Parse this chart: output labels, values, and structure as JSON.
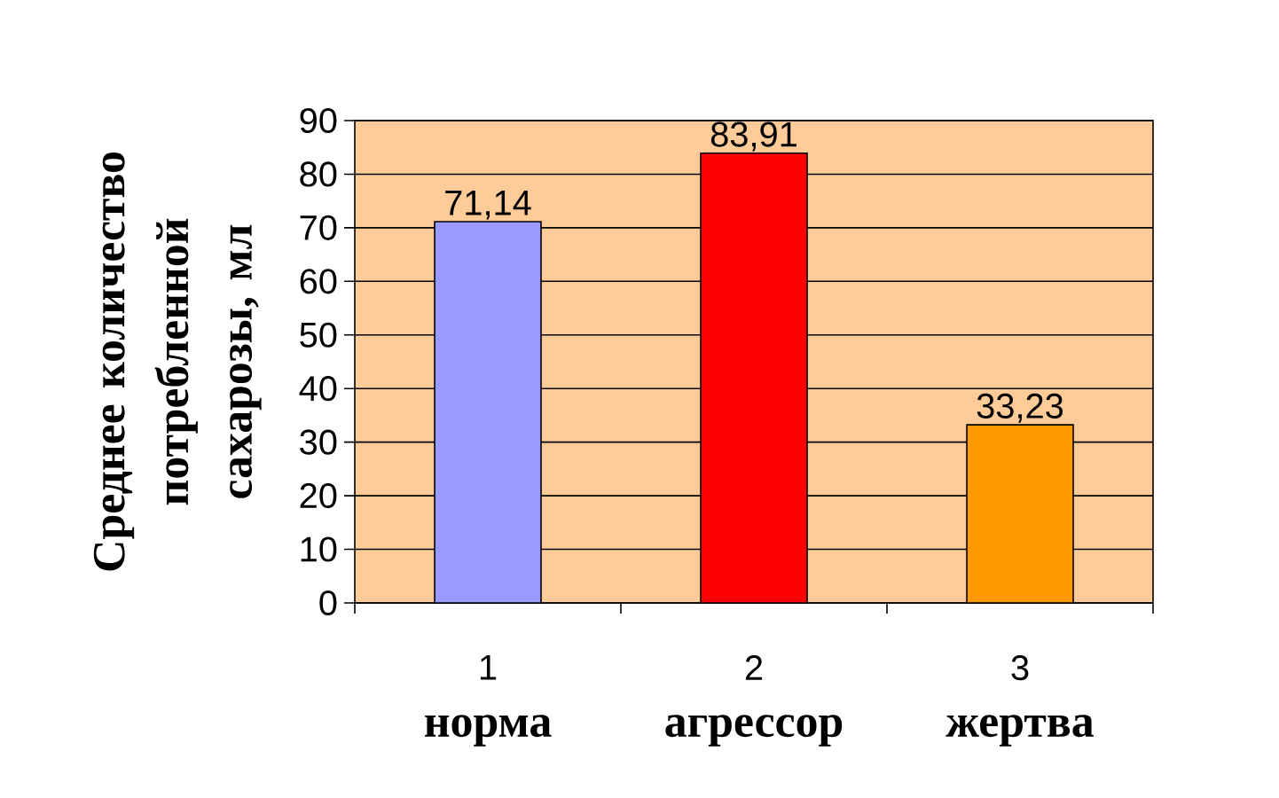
{
  "chart_data": {
    "type": "bar",
    "ylabel": "Среднее количество потребленной сахарозы, мл",
    "categories": [
      "1",
      "2",
      "3"
    ],
    "values": [
      71.14,
      83.91,
      33.23
    ],
    "colors": [
      "#9999ff",
      "#ff0000",
      "#ff9900"
    ],
    "value_labels": [
      "71,14",
      "83,91",
      "33,23"
    ],
    "ylim": [
      0,
      90
    ],
    "yticks": [
      0,
      10,
      20,
      30,
      40,
      50,
      60,
      70,
      80,
      90
    ],
    "grid": "y",
    "annotations": [
      "норма",
      "агрессор",
      "жертва"
    ]
  }
}
